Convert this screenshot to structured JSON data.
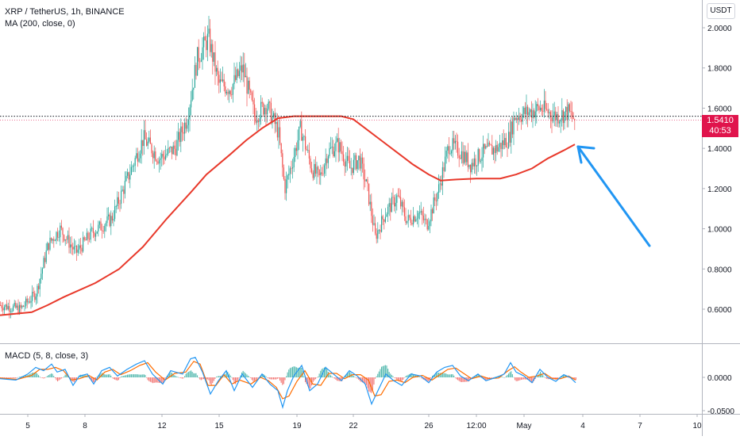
{
  "legend": {
    "symbol_line": "XRP / TetherUS, 1h, BINANCE",
    "ma_line": "MA (200, close, 0)",
    "macd_line": "MACD (5, 8, close, 3)"
  },
  "currency_label": "USDT",
  "last_price": {
    "price_label": "1.5410",
    "countdown": "40:53",
    "reference_line": 1.56,
    "last_close": 1.541
  },
  "colors": {
    "up": "#26a69a",
    "down": "#ef5350",
    "ma": "#e8392b",
    "macd": "#2196f3",
    "signal": "#ff6d00",
    "arrow": "#2196f3",
    "price_tag": "#e0144c"
  },
  "chart_data": [
    {
      "type": "candlestick",
      "title": "XRP / TetherUS, 1h, BINANCE",
      "x_ticks": [
        "5",
        "8",
        "12",
        "15",
        "19",
        "22",
        "26",
        "12:00",
        "May",
        "4",
        "7",
        "10"
      ],
      "y_ticks": [
        "0.6000",
        "0.8000",
        "1.0000",
        "1.2000",
        "1.4000",
        "1.6000",
        "1.8000",
        "2.0000"
      ],
      "ylim": [
        0.5,
        2.1
      ],
      "price_path": [
        [
          0,
          0.62
        ],
        [
          25,
          0.6
        ],
        [
          45,
          0.68
        ],
        [
          60,
          0.92
        ],
        [
          75,
          1.0
        ],
        [
          95,
          0.88
        ],
        [
          115,
          0.98
        ],
        [
          140,
          1.05
        ],
        [
          160,
          1.25
        ],
        [
          180,
          1.45
        ],
        [
          200,
          1.35
        ],
        [
          220,
          1.4
        ],
        [
          235,
          1.55
        ],
        [
          248,
          1.85
        ],
        [
          262,
          1.95
        ],
        [
          275,
          1.72
        ],
        [
          290,
          1.7
        ],
        [
          305,
          1.8
        ],
        [
          320,
          1.56
        ],
        [
          335,
          1.62
        ],
        [
          350,
          1.48
        ],
        [
          358,
          1.2
        ],
        [
          368,
          1.34
        ],
        [
          378,
          1.5
        ],
        [
          392,
          1.3
        ],
        [
          402,
          1.25
        ],
        [
          412,
          1.38
        ],
        [
          425,
          1.42
        ],
        [
          440,
          1.3
        ],
        [
          452,
          1.35
        ],
        [
          462,
          1.2
        ],
        [
          472,
          0.96
        ],
        [
          485,
          1.08
        ],
        [
          500,
          1.16
        ],
        [
          512,
          1.04
        ],
        [
          527,
          1.08
        ],
        [
          537,
          1.02
        ],
        [
          552,
          1.2
        ],
        [
          565,
          1.42
        ],
        [
          580,
          1.38
        ],
        [
          592,
          1.32
        ],
        [
          608,
          1.38
        ],
        [
          625,
          1.4
        ],
        [
          640,
          1.45
        ],
        [
          648,
          1.56
        ],
        [
          665,
          1.58
        ],
        [
          680,
          1.6
        ],
        [
          700,
          1.56
        ],
        [
          715,
          1.58
        ],
        [
          724,
          1.54
        ]
      ],
      "series": [
        {
          "name": "MA (200, close, 0)",
          "points": [
            [
              0,
              0.57
            ],
            [
              40,
              0.585
            ],
            [
              60,
              0.62
            ],
            [
              80,
              0.66
            ],
            [
              120,
              0.73
            ],
            [
              150,
              0.8
            ],
            [
              180,
              0.91
            ],
            [
              210,
              1.05
            ],
            [
              240,
              1.18
            ],
            [
              260,
              1.27
            ],
            [
              290,
              1.37
            ],
            [
              310,
              1.44
            ],
            [
              330,
              1.5
            ],
            [
              350,
              1.55
            ],
            [
              370,
              1.56
            ],
            [
              390,
              1.56
            ],
            [
              430,
              1.56
            ],
            [
              445,
              1.545
            ],
            [
              460,
              1.5
            ],
            [
              480,
              1.44
            ],
            [
              500,
              1.38
            ],
            [
              520,
              1.32
            ],
            [
              540,
              1.27
            ],
            [
              555,
              1.24
            ],
            [
              575,
              1.245
            ],
            [
              600,
              1.25
            ],
            [
              630,
              1.25
            ],
            [
              650,
              1.27
            ],
            [
              670,
              1.3
            ],
            [
              690,
              1.35
            ],
            [
              710,
              1.39
            ],
            [
              724,
              1.42
            ]
          ]
        }
      ]
    },
    {
      "type": "line",
      "title": "MACD (5, 8, close, 3)",
      "y_ticks": [
        "0.0000",
        "-0.0500"
      ],
      "ylim": [
        -0.065,
        0.055
      ],
      "series": [
        {
          "name": "MACD",
          "points": [
            [
              0,
              -0.002
            ],
            [
              20,
              -0.004
            ],
            [
              35,
              0.005
            ],
            [
              45,
              0.015
            ],
            [
              55,
              0.01
            ],
            [
              65,
              0.02
            ],
            [
              72,
              0.008
            ],
            [
              82,
              0.012
            ],
            [
              92,
              -0.012
            ],
            [
              100,
              0.002
            ],
            [
              110,
              0.005
            ],
            [
              118,
              -0.01
            ],
            [
              128,
              0.01
            ],
            [
              138,
              0.015
            ],
            [
              148,
              0.002
            ],
            [
              160,
              0.012
            ],
            [
              172,
              0.02
            ],
            [
              182,
              0.025
            ],
            [
              192,
              0.005
            ],
            [
              205,
              -0.01
            ],
            [
              215,
              0.01
            ],
            [
              230,
              0.005
            ],
            [
              240,
              0.028
            ],
            [
              246,
              0.03
            ],
            [
              255,
              0.008
            ],
            [
              265,
              -0.025
            ],
            [
              275,
              -0.005
            ],
            [
              285,
              0.01
            ],
            [
              295,
              -0.02
            ],
            [
              305,
              0.005
            ],
            [
              318,
              -0.015
            ],
            [
              330,
              0.005
            ],
            [
              340,
              -0.01
            ],
            [
              350,
              -0.02
            ],
            [
              356,
              -0.045
            ],
            [
              362,
              -0.02
            ],
            [
              370,
              0.002
            ],
            [
              380,
              0.018
            ],
            [
              390,
              -0.02
            ],
            [
              400,
              -0.01
            ],
            [
              410,
              0.015
            ],
            [
              420,
              0.005
            ],
            [
              430,
              -0.005
            ],
            [
              440,
              0.01
            ],
            [
              450,
              0.002
            ],
            [
              460,
              -0.01
            ],
            [
              468,
              -0.04
            ],
            [
              476,
              -0.02
            ],
            [
              486,
              0.005
            ],
            [
              496,
              -0.005
            ],
            [
              506,
              -0.012
            ],
            [
              518,
              0.005
            ],
            [
              530,
              0.002
            ],
            [
              540,
              -0.008
            ],
            [
              550,
              0.008
            ],
            [
              560,
              0.015
            ],
            [
              570,
              0.018
            ],
            [
              580,
              0.002
            ],
            [
              590,
              -0.005
            ],
            [
              602,
              0.005
            ],
            [
              612,
              -0.005
            ],
            [
              625,
              0.0
            ],
            [
              635,
              0.005
            ],
            [
              643,
              0.022
            ],
            [
              650,
              0.008
            ],
            [
              660,
              0.002
            ],
            [
              670,
              -0.008
            ],
            [
              680,
              0.012
            ],
            [
              690,
              0.0
            ],
            [
              700,
              -0.006
            ],
            [
              710,
              0.004
            ],
            [
              718,
              0.0
            ],
            [
              725,
              -0.008
            ]
          ]
        },
        {
          "name": "Signal",
          "points": [
            [
              0,
              -0.001
            ],
            [
              22,
              -0.003
            ],
            [
              40,
              0.003
            ],
            [
              50,
              0.012
            ],
            [
              60,
              0.012
            ],
            [
              70,
              0.015
            ],
            [
              80,
              0.01
            ],
            [
              90,
              -0.004
            ],
            [
              100,
              -0.002
            ],
            [
              112,
              0.003
            ],
            [
              122,
              -0.004
            ],
            [
              132,
              0.008
            ],
            [
              142,
              0.012
            ],
            [
              152,
              0.004
            ],
            [
              164,
              0.01
            ],
            [
              176,
              0.018
            ],
            [
              186,
              0.022
            ],
            [
              196,
              0.008
            ],
            [
              208,
              -0.004
            ],
            [
              220,
              0.006
            ],
            [
              234,
              0.008
            ],
            [
              244,
              0.024
            ],
            [
              252,
              0.02
            ],
            [
              262,
              -0.012
            ],
            [
              272,
              -0.012
            ],
            [
              282,
              0.004
            ],
            [
              292,
              -0.01
            ],
            [
              302,
              -0.004
            ],
            [
              316,
              -0.01
            ],
            [
              328,
              0.0
            ],
            [
              338,
              -0.005
            ],
            [
              348,
              -0.015
            ],
            [
              356,
              -0.032
            ],
            [
              364,
              -0.028
            ],
            [
              374,
              -0.006
            ],
            [
              384,
              0.01
            ],
            [
              394,
              -0.01
            ],
            [
              404,
              -0.012
            ],
            [
              414,
              0.006
            ],
            [
              424,
              0.006
            ],
            [
              434,
              -0.002
            ],
            [
              444,
              0.004
            ],
            [
              454,
              0.004
            ],
            [
              464,
              -0.004
            ],
            [
              472,
              -0.028
            ],
            [
              480,
              -0.026
            ],
            [
              490,
              -0.006
            ],
            [
              500,
              -0.004
            ],
            [
              510,
              -0.008
            ],
            [
              520,
              0.0
            ],
            [
              532,
              0.003
            ],
            [
              544,
              -0.004
            ],
            [
              554,
              0.004
            ],
            [
              564,
              0.012
            ],
            [
              574,
              0.014
            ],
            [
              584,
              0.006
            ],
            [
              594,
              -0.002
            ],
            [
              606,
              0.002
            ],
            [
              616,
              -0.002
            ],
            [
              628,
              -0.001
            ],
            [
              640,
              0.01
            ],
            [
              648,
              0.016
            ],
            [
              656,
              0.008
            ],
            [
              666,
              0.0
            ],
            [
              676,
              0.002
            ],
            [
              686,
              0.006
            ],
            [
              696,
              -0.002
            ],
            [
              706,
              -0.002
            ],
            [
              716,
              0.002
            ],
            [
              725,
              -0.004
            ]
          ]
        }
      ]
    }
  ]
}
